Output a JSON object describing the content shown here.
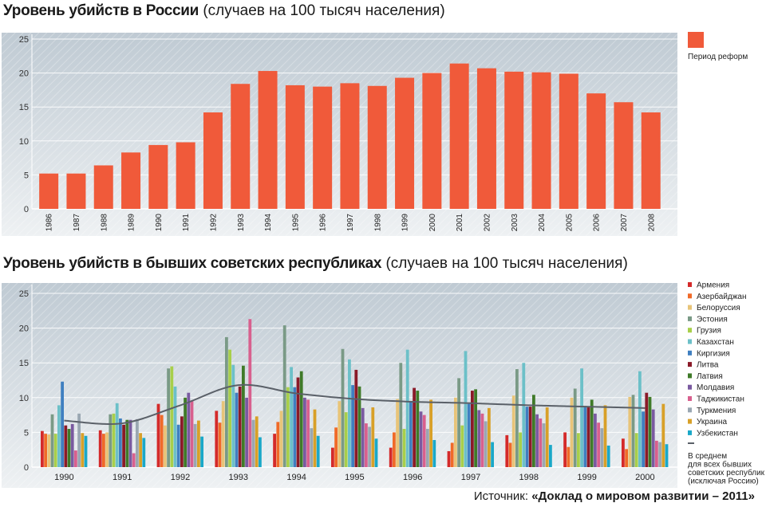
{
  "chart_data": [
    {
      "type": "bar",
      "title": "Уровень убийств в России",
      "subtitle": "(случаев на 100 тысяч населения)",
      "categories": [
        "1986",
        "1987",
        "1988",
        "1989",
        "1990",
        "1991",
        "1992",
        "1993",
        "1994",
        "1995",
        "1996",
        "1997",
        "1998",
        "1999",
        "2000",
        "2001",
        "2002",
        "2003",
        "2004",
        "2005",
        "2006",
        "2007",
        "2008"
      ],
      "series": [
        {
          "name": "Период реформ",
          "color": "#f05a3a",
          "values": [
            5.2,
            5.2,
            6.4,
            8.3,
            9.4,
            9.8,
            14.2,
            18.4,
            20.3,
            18.2,
            18.0,
            18.5,
            18.1,
            19.3,
            20.0,
            21.4,
            20.7,
            20.2,
            20.1,
            19.9,
            17.0,
            15.7,
            14.2
          ]
        }
      ],
      "ylim": [
        0,
        25
      ],
      "yticks": [
        0,
        5,
        10,
        15,
        20,
        25
      ],
      "grid": true,
      "legend": "right"
    },
    {
      "type": "bar",
      "title": "Уровень убийств в бывших советских республиках",
      "subtitle": "(случаев на 100 тысяч населения)",
      "categories": [
        "1990",
        "1991",
        "1992",
        "1993",
        "1994",
        "1995",
        "1996",
        "1997",
        "1998",
        "1999",
        "2000"
      ],
      "series": [
        {
          "name": "Армения",
          "color": "#d42a2a",
          "values": [
            5.2,
            5.3,
            9.1,
            8.1,
            4.8,
            2.8,
            2.8,
            2.3,
            4.6,
            5.0,
            4.1
          ]
        },
        {
          "name": "Азербайджан",
          "color": "#f06a28",
          "values": [
            4.8,
            4.8,
            7.5,
            6.4,
            6.5,
            5.7,
            5.0,
            3.5,
            3.5,
            2.9,
            2.6
          ]
        },
        {
          "name": "Белоруссия",
          "color": "#e8c478",
          "values": [
            4.7,
            5.0,
            6.0,
            9.5,
            8.1,
            9.5,
            9.8,
            10.0,
            10.3,
            10.0,
            10.1
          ]
        },
        {
          "name": "Эстония",
          "color": "#7a9a86",
          "values": [
            7.6,
            7.6,
            14.2,
            18.7,
            20.4,
            17.0,
            15.0,
            12.8,
            14.1,
            11.3,
            10.4
          ]
        },
        {
          "name": "Грузия",
          "color": "#a8cf4a",
          "values": [
            4.8,
            7.7,
            14.5,
            16.9,
            11.5,
            7.9,
            5.5,
            6.0,
            5.0,
            4.9,
            4.9
          ]
        },
        {
          "name": "Казахстан",
          "color": "#6cc0c8",
          "values": [
            8.9,
            9.2,
            11.6,
            14.7,
            14.4,
            15.5,
            16.9,
            16.7,
            15.0,
            14.2,
            13.8
          ]
        },
        {
          "name": "Киргизия",
          "color": "#3f7fc0",
          "values": [
            12.3,
            7.0,
            6.1,
            10.7,
            11.5,
            11.8,
            9.4,
            9.1,
            8.7,
            8.8,
            8.0
          ]
        },
        {
          "name": "Литва",
          "color": "#8a1a28",
          "values": [
            6.0,
            6.1,
            7.3,
            11.6,
            12.9,
            14.0,
            11.4,
            11.0,
            8.7,
            8.7,
            10.7
          ]
        },
        {
          "name": "Латвия",
          "color": "#3f7a28",
          "values": [
            5.5,
            6.8,
            10.0,
            14.6,
            13.8,
            11.6,
            11.0,
            11.2,
            10.4,
            9.7,
            10.1
          ]
        },
        {
          "name": "Молдавия",
          "color": "#7a5aa0",
          "values": [
            6.2,
            6.8,
            10.7,
            10.0,
            10.0,
            8.5,
            8.0,
            8.2,
            7.6,
            7.7,
            8.3
          ]
        },
        {
          "name": "Таджикистан",
          "color": "#d8608e",
          "values": [
            2.4,
            2.0,
            9.6,
            21.3,
            9.7,
            6.3,
            7.5,
            7.7,
            7.0,
            6.4,
            3.8
          ]
        },
        {
          "name": "Туркмения",
          "color": "#9aa7b2",
          "values": [
            7.7,
            6.9,
            6.2,
            6.8,
            5.6,
            5.8,
            5.5,
            6.6,
            6.3,
            5.6,
            3.6
          ]
        },
        {
          "name": "Украина",
          "color": "#d8a028",
          "values": [
            4.9,
            4.9,
            6.7,
            7.3,
            8.3,
            8.6,
            9.7,
            8.5,
            8.6,
            8.9,
            9.1
          ]
        },
        {
          "name": "Узбекистан",
          "color": "#1aa8c8",
          "values": [
            4.5,
            4.2,
            4.4,
            4.3,
            4.5,
            4.1,
            3.9,
            3.6,
            3.2,
            3.1,
            3.3
          ]
        }
      ],
      "trend": {
        "name": "В среднем для всех бывших советских республик (исключая Россию)",
        "color": "#5a6068",
        "values": [
          6.7,
          6.3,
          8.9,
          11.8,
          10.6,
          9.8,
          9.4,
          9.2,
          8.9,
          8.7,
          8.5
        ]
      },
      "ylim": [
        0,
        25
      ],
      "yticks": [
        0,
        5,
        10,
        15,
        20,
        25
      ],
      "grid": true,
      "legend": "right"
    }
  ],
  "source": {
    "prefix": "Источник: ",
    "name": "«Доклад о мировом развитии – 2011»"
  }
}
